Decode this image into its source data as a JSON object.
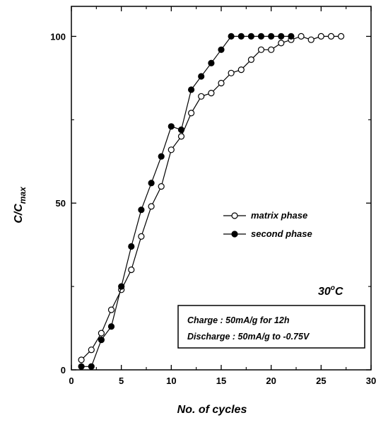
{
  "chart_data": {
    "type": "line",
    "xlabel": "No. of cycles",
    "ylabel_main": "C/C",
    "ylabel_sub": "max",
    "xlim": [
      0,
      30
    ],
    "ylim": [
      0,
      109
    ],
    "x_ticks": [
      0,
      5,
      10,
      15,
      20,
      25,
      30
    ],
    "y_ticks": [
      0,
      50,
      100
    ],
    "grid": false,
    "legend_position": "center-right",
    "series": [
      {
        "name": "matrix phase",
        "marker": "open-circle",
        "color": "#000000",
        "x": [
          1,
          2,
          3,
          4,
          5,
          6,
          7,
          8,
          9,
          10,
          11,
          12,
          13,
          14,
          15,
          16,
          17,
          18,
          19,
          20,
          21,
          22,
          23,
          24,
          25,
          26,
          27
        ],
        "y": [
          3,
          6,
          11,
          18,
          24,
          30,
          40,
          49,
          55,
          66,
          70,
          77,
          82,
          83,
          86,
          89,
          90,
          93,
          96,
          96,
          98,
          99,
          100,
          99,
          100,
          100,
          100
        ]
      },
      {
        "name": "second phase",
        "marker": "filled-circle",
        "color": "#000000",
        "x": [
          1,
          2,
          3,
          4,
          5,
          6,
          7,
          8,
          9,
          10,
          11,
          12,
          13,
          14,
          15,
          16,
          17,
          18,
          19,
          20,
          21,
          22
        ],
        "y": [
          1,
          1,
          9,
          13,
          25,
          37,
          48,
          56,
          64,
          73,
          72,
          84,
          88,
          92,
          96,
          100,
          100,
          100,
          100,
          100,
          100,
          100
        ]
      }
    ],
    "annotations": {
      "temperature_base": "30",
      "temperature_sup": "o",
      "temperature_unit": "C",
      "condition_line1": "Charge : 50mA/g for 12h",
      "condition_line2": "Discharge : 50mA/g to -0.75V"
    }
  }
}
